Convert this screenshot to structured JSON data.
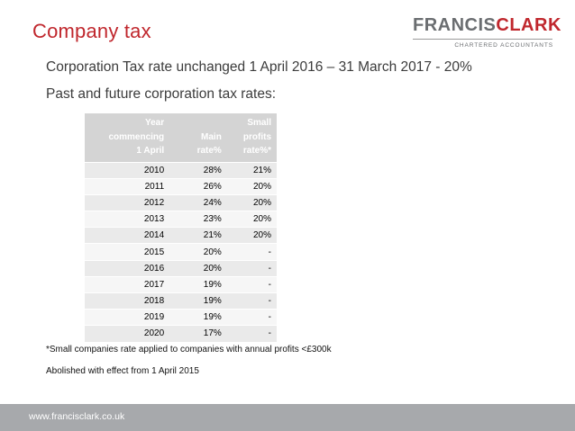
{
  "slide": {
    "title": "Company tax",
    "line1": "Corporation Tax rate unchanged 1 April 2016 – 31 March 2017 - 20%",
    "line2": "Past and future corporation tax rates:",
    "note1": "*Small companies rate applied to companies with annual profits <£300k",
    "note2": "Abolished with effect from 1 April 2015"
  },
  "logo": {
    "brand_part1": "FRANCIS",
    "brand_part2": "CLARK",
    "tagline": "CHARTERED ACCOUNTANTS"
  },
  "table": {
    "headers": [
      [
        "Year",
        "commencing",
        "1 April"
      ],
      [
        "Main",
        "rate%"
      ],
      [
        "Small",
        "profits",
        "rate%*"
      ]
    ],
    "rows": [
      [
        "2010",
        "28%",
        "21%"
      ],
      [
        "2011",
        "26%",
        "20%"
      ],
      [
        "2012",
        "24%",
        "20%"
      ],
      [
        "2013",
        "23%",
        "20%"
      ],
      [
        "2014",
        "21%",
        "20%"
      ],
      [
        "2015",
        "20%",
        "-"
      ],
      [
        "2016",
        "20%",
        "-"
      ],
      [
        "2017",
        "19%",
        "-"
      ],
      [
        "2018",
        "19%",
        "-"
      ],
      [
        "2019",
        "19%",
        "-"
      ],
      [
        "2020",
        "17%",
        "-"
      ]
    ]
  },
  "footer": {
    "url": "www.francisclark.co.uk"
  },
  "colors": {
    "accent": "#c0272d",
    "logo_grey": "#6a6d70",
    "footer_bg": "#a7a9ac",
    "header_bg": "#d4d4d4"
  }
}
